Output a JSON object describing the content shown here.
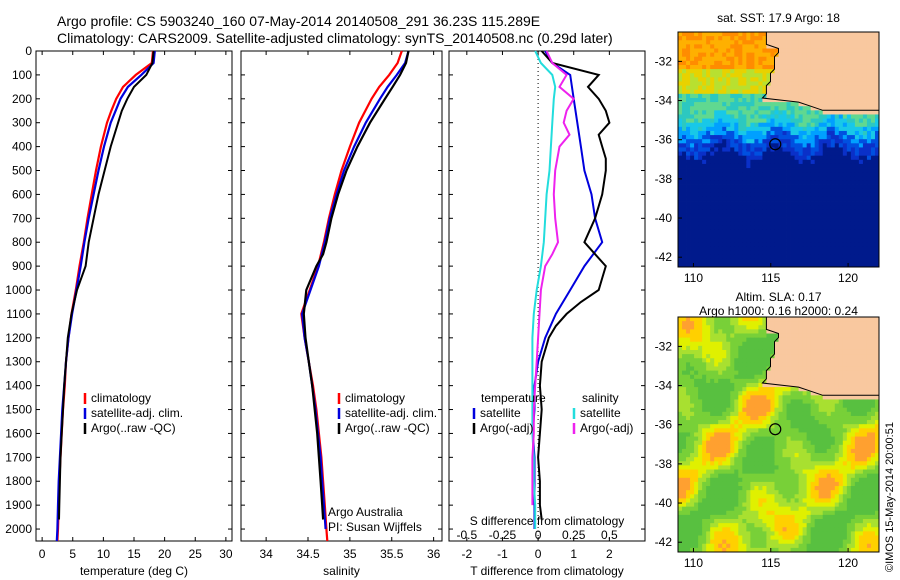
{
  "header": {
    "line1": "Argo profile: CS 5903240_160 07-May-2014 20140508_291 36.23S 115.289E",
    "line2": "Climatology: CARS2009. Satellite-adjusted climatology: synTS_20140508.nc (0.29d later)"
  },
  "colors": {
    "climatology": "#ff0000",
    "satellite": "#0000dd",
    "argo": "#000000",
    "sal_satellite": "#22dddd",
    "sal_argo": "#ee22ee",
    "land": "#f9c89f"
  },
  "chart_data": [
    {
      "type": "line",
      "xlabel": "temperature (deg C)",
      "ylabel": "",
      "xlim": [
        -1,
        31
      ],
      "ylim": [
        2050,
        0
      ],
      "x_ticks": [
        "0",
        "5",
        "10",
        "15",
        "20",
        "25",
        "30"
      ],
      "y_ticks": [
        "0",
        "100",
        "200",
        "300",
        "400",
        "500",
        "600",
        "700",
        "800",
        "900",
        "1000",
        "1100",
        "1200",
        "1300",
        "1400",
        "1500",
        "1600",
        "1700",
        "1800",
        "1900",
        "2000"
      ],
      "legend": [
        "climatology",
        "satellite-adj. clim.",
        "Argo(..raw -QC)"
      ],
      "legend_position": "lower-left",
      "series": [
        {
          "name": "climatology",
          "depth": [
            0,
            50,
            100,
            150,
            200,
            250,
            300,
            400,
            500,
            600,
            700,
            800,
            900,
            1000,
            1100,
            1200,
            1300,
            1400,
            1500,
            1600,
            1700,
            1800,
            1900,
            2000,
            2050
          ],
          "values": [
            18.1,
            17.9,
            15.3,
            13.2,
            12.1,
            11.3,
            10.6,
            9.6,
            8.8,
            8.1,
            7.4,
            6.8,
            6.1,
            5.5,
            4.8,
            4.3,
            3.9,
            3.7,
            3.4,
            3.2,
            3.0,
            2.8,
            2.7,
            2.6,
            2.5
          ]
        },
        {
          "name": "satellite-adj. clim.",
          "depth": [
            0,
            50,
            100,
            150,
            200,
            250,
            300,
            400,
            500,
            600,
            700,
            800,
            900,
            1000,
            1100,
            1200,
            1300,
            1400,
            1500,
            1600,
            1700,
            1800,
            1900,
            2000,
            2050
          ],
          "values": [
            18.4,
            18.2,
            16.2,
            14.0,
            12.8,
            12.0,
            11.2,
            10.1,
            9.2,
            8.4,
            7.6,
            6.9,
            6.3,
            5.6,
            4.9,
            4.3,
            3.9,
            3.6,
            3.3,
            3.1,
            2.9,
            2.7,
            2.6,
            2.5,
            2.4
          ]
        },
        {
          "name": "Argo(..raw -QC)",
          "depth": [
            0,
            50,
            100,
            150,
            200,
            250,
            300,
            400,
            500,
            600,
            700,
            800,
            900,
            950,
            1000,
            1100,
            1200,
            1300,
            1400,
            1500,
            1600,
            1700,
            1800,
            1900,
            1960
          ],
          "values": [
            18.2,
            18.0,
            17.0,
            15.0,
            13.9,
            13.0,
            12.4,
            11.2,
            10.2,
            9.2,
            8.4,
            7.6,
            7.1,
            6.4,
            5.7,
            4.8,
            4.2,
            3.9,
            3.6,
            3.4,
            3.2,
            3.0,
            2.9,
            2.8,
            2.75
          ]
        }
      ]
    },
    {
      "type": "line",
      "xlabel": "salinity",
      "xlim": [
        33.7,
        36.1
      ],
      "ylim": [
        2050,
        0
      ],
      "x_ticks": [
        "34",
        "34.5",
        "35",
        "35.5",
        "36"
      ],
      "legend": [
        "climatology",
        "satellite-adj. clim.",
        "Argo(..raw -QC)"
      ],
      "legend_position": "lower-left",
      "annotation": [
        "Argo Australia",
        "PI: Susan Wijffels"
      ],
      "series": [
        {
          "name": "climatology",
          "depth": [
            0,
            50,
            100,
            150,
            200,
            300,
            400,
            500,
            600,
            700,
            800,
            900,
            1000,
            1100,
            1200,
            1300,
            1400,
            1500,
            1600,
            1700,
            1800,
            1900,
            2000,
            2050
          ],
          "values": [
            35.62,
            35.57,
            35.47,
            35.35,
            35.26,
            35.11,
            35.0,
            34.9,
            34.82,
            34.75,
            34.69,
            34.62,
            34.52,
            34.42,
            34.46,
            34.51,
            34.56,
            34.6,
            34.63,
            34.66,
            34.68,
            34.7,
            34.72,
            34.73
          ]
        },
        {
          "name": "satellite-adj. clim.",
          "depth": [
            0,
            50,
            100,
            150,
            200,
            300,
            400,
            500,
            600,
            700,
            800,
            900,
            1000,
            1100,
            1200,
            1300,
            1400,
            1500,
            1600,
            1700,
            1800,
            1900,
            2000
          ],
          "values": [
            35.7,
            35.66,
            35.56,
            35.45,
            35.36,
            35.19,
            35.05,
            34.93,
            34.84,
            34.76,
            34.7,
            34.63,
            34.53,
            34.43,
            34.46,
            34.51,
            34.55,
            34.59,
            34.62,
            34.65,
            34.67,
            34.69,
            34.71
          ]
        },
        {
          "name": "Argo(..raw -QC)",
          "depth": [
            0,
            50,
            100,
            150,
            200,
            300,
            400,
            500,
            600,
            700,
            800,
            850,
            900,
            1000,
            1100,
            1200,
            1300,
            1400,
            1500,
            1600,
            1700,
            1800,
            1900,
            1960
          ],
          "values": [
            35.7,
            35.67,
            35.6,
            35.51,
            35.42,
            35.24,
            35.09,
            34.96,
            34.86,
            34.78,
            34.72,
            34.68,
            34.6,
            34.48,
            34.45,
            34.47,
            34.51,
            34.55,
            34.58,
            34.61,
            34.63,
            34.65,
            34.67,
            34.68
          ]
        }
      ]
    },
    {
      "type": "line",
      "xlabel": "T difference from climatology",
      "xlabel_top": "S difference from climatology",
      "xlim_T": [
        -2.5,
        3.0
      ],
      "x_ticks_T": [
        "-2",
        "-1",
        "0",
        "1",
        "2"
      ],
      "x_ticks_S": [
        "-0.5",
        "-0.25",
        "0",
        "0.25",
        "0.5"
      ],
      "ylim": [
        2050,
        0
      ],
      "legend_title_left": "temperature",
      "legend_title_right": "salinity",
      "legend": [
        "satellite",
        "Argo(-adj)",
        "satellite",
        "Argo(-adj)"
      ],
      "legend_position": "lower-center",
      "series": [
        {
          "name": "temperature satellite",
          "depth": [
            0,
            50,
            100,
            200,
            300,
            400,
            500,
            600,
            700,
            800,
            900,
            1000,
            1100,
            1200,
            1300,
            1400,
            1500,
            1600,
            1700,
            1800,
            1900,
            2000
          ],
          "values": [
            0.2,
            0.4,
            0.9,
            1.0,
            1.1,
            1.2,
            1.3,
            1.5,
            1.6,
            1.8,
            1.3,
            0.9,
            0.5,
            0.2,
            0.0,
            -0.1,
            -0.1,
            -0.15,
            -0.1,
            -0.1,
            -0.1,
            -0.1
          ]
        },
        {
          "name": "temperature Argo(-adj)",
          "depth": [
            0,
            50,
            100,
            150,
            200,
            250,
            300,
            350,
            400,
            450,
            500,
            600,
            700,
            800,
            850,
            900,
            950,
            1000,
            1050,
            1100,
            1150,
            1200,
            1300,
            1400,
            1500,
            1600,
            1700,
            1800,
            1900,
            1960
          ],
          "values": [
            0.1,
            0.4,
            1.7,
            1.4,
            1.7,
            1.9,
            2.0,
            1.7,
            1.8,
            1.9,
            1.9,
            1.8,
            1.6,
            1.3,
            1.6,
            1.9,
            1.8,
            1.7,
            1.2,
            0.8,
            0.5,
            0.3,
            0.1,
            0.05,
            0.1,
            0.05,
            0.0,
            0.05,
            0.05,
            0.1
          ]
        },
        {
          "name": "salinity satellite",
          "depth": [
            0,
            50,
            100,
            150,
            200,
            300,
            400,
            500,
            600,
            700,
            800,
            900,
            1000,
            1100,
            1200,
            1300,
            1400,
            1500,
            1600,
            1700,
            1800,
            1900,
            2000
          ],
          "values": [
            -0.02,
            0.02,
            0.1,
            0.12,
            0.11,
            0.1,
            0.09,
            0.08,
            0.06,
            0.05,
            0.04,
            0.02,
            -0.01,
            -0.03,
            -0.04,
            -0.04,
            -0.04,
            -0.04,
            -0.04,
            -0.03,
            -0.03,
            -0.02,
            -0.02
          ]
        },
        {
          "name": "salinity Argo(-adj)",
          "depth": [
            0,
            50,
            100,
            150,
            200,
            250,
            300,
            350,
            400,
            500,
            600,
            700,
            800,
            850,
            900,
            1000,
            1100,
            1200,
            1300,
            1400,
            1500,
            1600,
            1700,
            1800,
            1900
          ],
          "values": [
            0.06,
            0.1,
            0.2,
            0.15,
            0.25,
            0.2,
            0.18,
            0.22,
            0.15,
            0.12,
            0.11,
            0.12,
            0.14,
            0.1,
            0.05,
            0.02,
            0.01,
            0.0,
            -0.01,
            -0.02,
            -0.03,
            -0.03,
            -0.04,
            -0.04,
            -0.04
          ]
        }
      ]
    },
    {
      "type": "heatmap",
      "title": "sat. SST: 17.9 Argo: 18",
      "x_ticks": [
        "110",
        "115",
        "120"
      ],
      "y_ticks": [
        "-32",
        "-34",
        "-36",
        "-38",
        "-40",
        "-42"
      ],
      "xlim": [
        109,
        122
      ],
      "ylim": [
        -42.5,
        -30.5
      ],
      "argo_position": {
        "lon": 115.289,
        "lat": -36.23
      }
    },
    {
      "type": "heatmap",
      "title_line1": "Altim. SLA: 0.17",
      "title_line2": "Argo h1000: 0.16 h2000: 0.24",
      "x_ticks": [
        "110",
        "115",
        "120"
      ],
      "y_ticks": [
        "-32",
        "-34",
        "-36",
        "-38",
        "-40",
        "-42"
      ],
      "xlim": [
        109,
        122
      ],
      "ylim": [
        -42.5,
        -30.5
      ],
      "argo_position": {
        "lon": 115.289,
        "lat": -36.23
      },
      "side_label": "©IMOS 15-May-2014 20:00:51"
    }
  ]
}
